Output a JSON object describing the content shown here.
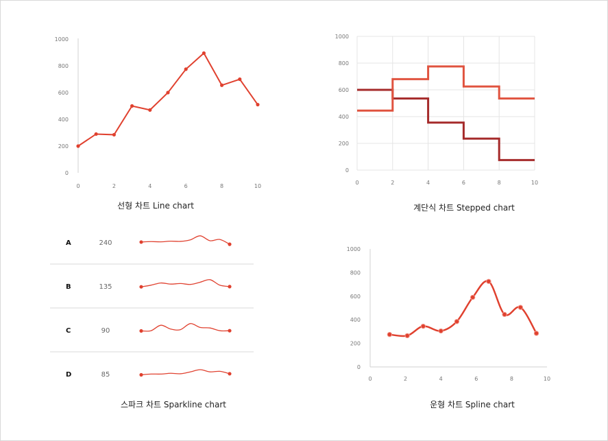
{
  "chart_data": [
    {
      "type": "line",
      "title": "선형 차트 Line chart",
      "x": [
        0,
        1,
        2,
        3,
        4,
        5,
        6,
        7,
        8,
        9,
        10
      ],
      "y": [
        200,
        290,
        285,
        500,
        470,
        600,
        775,
        895,
        655,
        700,
        510
      ],
      "xlim": [
        0,
        10
      ],
      "ylim": [
        0,
        1000
      ],
      "xticks": [
        "0",
        "2",
        "4",
        "6",
        "8",
        "10"
      ],
      "yticks": [
        "0",
        "200",
        "400",
        "600",
        "800",
        "1000"
      ],
      "color": "#e0412f",
      "grid": false
    },
    {
      "type": "line",
      "title": "계단식 차트 Stepped chart",
      "step": "post",
      "series": [
        {
          "x": [
            0,
            2,
            4,
            6,
            8,
            10
          ],
          "y": [
            600,
            535,
            355,
            235,
            75,
            75
          ],
          "color": "#a52a2a"
        },
        {
          "x": [
            0,
            2,
            4,
            6,
            8,
            10
          ],
          "y": [
            445,
            680,
            775,
            625,
            535,
            535
          ],
          "color": "#e0533f"
        }
      ],
      "xlim": [
        0,
        10
      ],
      "ylim": [
        0,
        1000
      ],
      "xticks": [
        "0",
        "2",
        "4",
        "6",
        "8",
        "10"
      ],
      "yticks": [
        "0",
        "200",
        "400",
        "600",
        "800",
        "1000"
      ],
      "grid": true
    },
    {
      "type": "table",
      "title": "스파크 차트 Sparkline chart",
      "rows": [
        {
          "label": "A",
          "value": "240",
          "spark": [
            0.38,
            0.42,
            0.4,
            0.46,
            0.44,
            0.58,
            0.95,
            0.5,
            0.62,
            0.18
          ]
        },
        {
          "label": "B",
          "value": "135",
          "spark": [
            0.3,
            0.45,
            0.65,
            0.55,
            0.6,
            0.52,
            0.72,
            0.95,
            0.45,
            0.32
          ]
        },
        {
          "label": "C",
          "value": "90",
          "spark": [
            0.28,
            0.3,
            0.8,
            0.45,
            0.4,
            0.95,
            0.6,
            0.55,
            0.3,
            0.3
          ]
        },
        {
          "label": "D",
          "value": "85",
          "spark": [
            0.28,
            0.35,
            0.35,
            0.42,
            0.38,
            0.55,
            0.75,
            0.55,
            0.6,
            0.38
          ]
        }
      ],
      "color": "#e0412f"
    },
    {
      "type": "line",
      "title": "운형 차트 Spline chart",
      "smooth": true,
      "x": [
        1.1,
        2.1,
        3.0,
        4.0,
        4.9,
        5.8,
        6.7,
        7.6,
        8.5,
        9.4
      ],
      "y": [
        275,
        265,
        345,
        305,
        385,
        590,
        725,
        445,
        505,
        285
      ],
      "xlim": [
        0,
        10
      ],
      "ylim": [
        0,
        1000
      ],
      "xticks": [
        "0",
        "2",
        "4",
        "6",
        "8",
        "10"
      ],
      "yticks": [
        "0",
        "200",
        "400",
        "600",
        "800",
        "1000"
      ],
      "color": "#e0412f",
      "grid": false
    }
  ]
}
